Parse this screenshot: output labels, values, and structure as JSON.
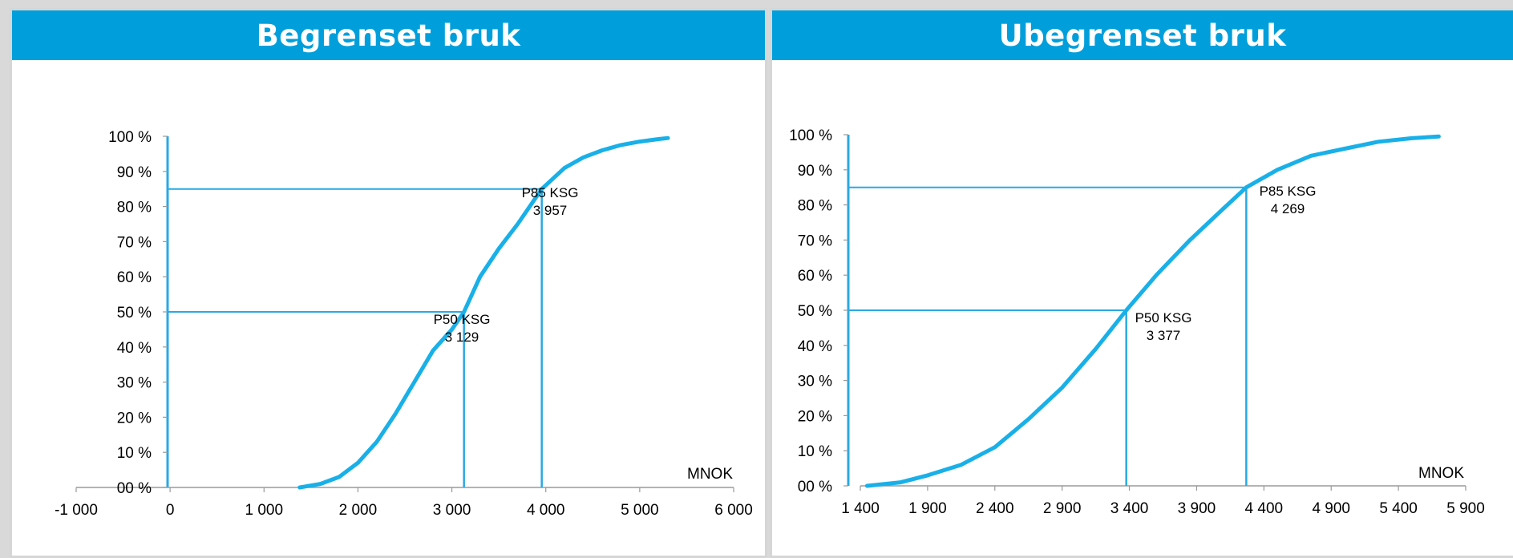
{
  "panels": [
    {
      "title": "Begrenset bruk"
    },
    {
      "title": "Ubegrenset bruk"
    }
  ],
  "colors": {
    "accent": "#009fdb",
    "curve": "#19b0e8",
    "guide": "#29a9e3"
  },
  "chart_data": [
    {
      "type": "line",
      "title": "Begrenset bruk",
      "xlabel": "MNOK",
      "ylabel": "",
      "xlim": [
        -1000,
        6000
      ],
      "ylim": [
        0,
        100
      ],
      "x_ticks": [
        -1000,
        0,
        1000,
        2000,
        3000,
        4000,
        5000,
        6000
      ],
      "x_tick_labels": [
        "-1 000",
        "0",
        "1 000",
        "2 000",
        "3 000",
        "4 000",
        "5 000",
        "6 000"
      ],
      "y_ticks": [
        0,
        10,
        20,
        30,
        40,
        50,
        60,
        70,
        80,
        90,
        100
      ],
      "y_tick_labels": [
        "00 %",
        "10 %",
        "20 %",
        "30 %",
        "40 %",
        "50 %",
        "60 %",
        "70 %",
        "80 %",
        "90 %",
        "100 %"
      ],
      "series": [
        {
          "x": [
            1380,
            1600,
            1800,
            2000,
            2200,
            2400,
            2600,
            2800,
            3000,
            3129,
            3300,
            3500,
            3700,
            3957,
            4200,
            4400,
            4600,
            4800,
            5000,
            5200,
            5300
          ],
          "y": [
            0,
            1,
            3,
            7,
            13,
            21,
            30,
            39,
            45,
            50,
            60,
            68,
            75,
            85,
            91,
            94,
            96,
            97.5,
            98.5,
            99.2,
            99.5
          ]
        }
      ],
      "markers": [
        {
          "label": "P50 KSG",
          "value_label": "3 129",
          "x": 3129,
          "y": 50
        },
        {
          "label": "P85 KSG",
          "value_label": "3 957",
          "x": 3957,
          "y": 85
        }
      ]
    },
    {
      "type": "line",
      "title": "Ubegrenset bruk",
      "xlabel": "MNOK",
      "ylabel": "",
      "xlim": [
        1400,
        5900
      ],
      "ylim": [
        0,
        100
      ],
      "x_ticks": [
        1400,
        1900,
        2400,
        2900,
        3400,
        3900,
        4400,
        4900,
        5400,
        5900
      ],
      "x_tick_labels": [
        "1 400",
        "1 900",
        "2 400",
        "2 900",
        "3 400",
        "3 900",
        "4 400",
        "4 900",
        "5 400",
        "5 900"
      ],
      "y_ticks": [
        0,
        10,
        20,
        30,
        40,
        50,
        60,
        70,
        80,
        90,
        100
      ],
      "y_tick_labels": [
        "00 %",
        "10 %",
        "20 %",
        "30 %",
        "40 %",
        "50 %",
        "60 %",
        "70 %",
        "80 %",
        "90 %",
        "100 %"
      ],
      "series": [
        {
          "x": [
            1450,
            1700,
            1900,
            2150,
            2400,
            2650,
            2900,
            3150,
            3377,
            3600,
            3850,
            4100,
            4269,
            4500,
            4750,
            5000,
            5250,
            5500,
            5700
          ],
          "y": [
            0,
            1,
            3,
            6,
            11,
            19,
            28,
            39,
            50,
            60,
            70,
            79,
            85,
            90,
            94,
            96,
            98,
            99,
            99.5
          ]
        }
      ],
      "markers": [
        {
          "label": "P50 KSG",
          "value_label": "3 377",
          "x": 3377,
          "y": 50
        },
        {
          "label": "P85 KSG",
          "value_label": "4 269",
          "x": 4269,
          "y": 85
        }
      ]
    }
  ]
}
